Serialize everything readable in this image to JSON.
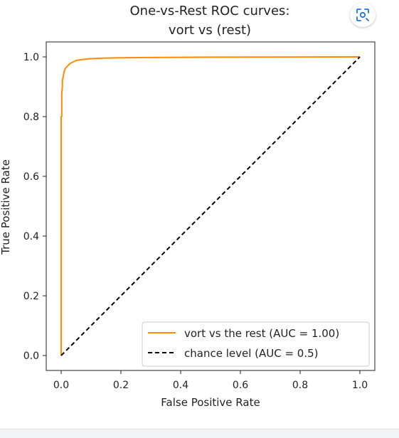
{
  "page": {
    "lens_icon": "lens-search-icon",
    "accent_color": "#1a73e8"
  },
  "chart_data": {
    "type": "line",
    "title_lines": [
      "One-vs-Rest ROC curves:",
      "vort vs (rest)"
    ],
    "xlabel": "False Positive Rate",
    "ylabel": "True Positive Rate",
    "xlim": [
      -0.05,
      1.05
    ],
    "ylim": [
      -0.05,
      1.05
    ],
    "xticks": [
      "0.0",
      "0.2",
      "0.4",
      "0.6",
      "0.8",
      "1.0"
    ],
    "yticks": [
      "0.0",
      "0.2",
      "0.4",
      "0.6",
      "0.8",
      "1.0"
    ],
    "grid": false,
    "legend_position": "lower-right",
    "series": [
      {
        "name": "vort vs the rest (AUC = 1.00)",
        "color": "#ff8c00",
        "style": "solid",
        "x": [
          0.0,
          0.0,
          0.002,
          0.002,
          0.004,
          0.004,
          0.006,
          0.008,
          0.01,
          0.013,
          0.017,
          0.022,
          0.03,
          0.04,
          0.05,
          0.07,
          0.1,
          0.15,
          0.2,
          0.3,
          0.5,
          1.0
        ],
        "y": [
          0.0,
          0.8,
          0.8,
          0.88,
          0.9,
          0.92,
          0.93,
          0.94,
          0.95,
          0.96,
          0.965,
          0.97,
          0.978,
          0.983,
          0.988,
          0.991,
          0.994,
          0.996,
          0.997,
          0.998,
          0.999,
          1.0
        ]
      },
      {
        "name": "chance level (AUC = 0.5)",
        "color": "#000000",
        "style": "dashed",
        "x": [
          0.0,
          1.0
        ],
        "y": [
          0.0,
          1.0
        ]
      }
    ]
  }
}
